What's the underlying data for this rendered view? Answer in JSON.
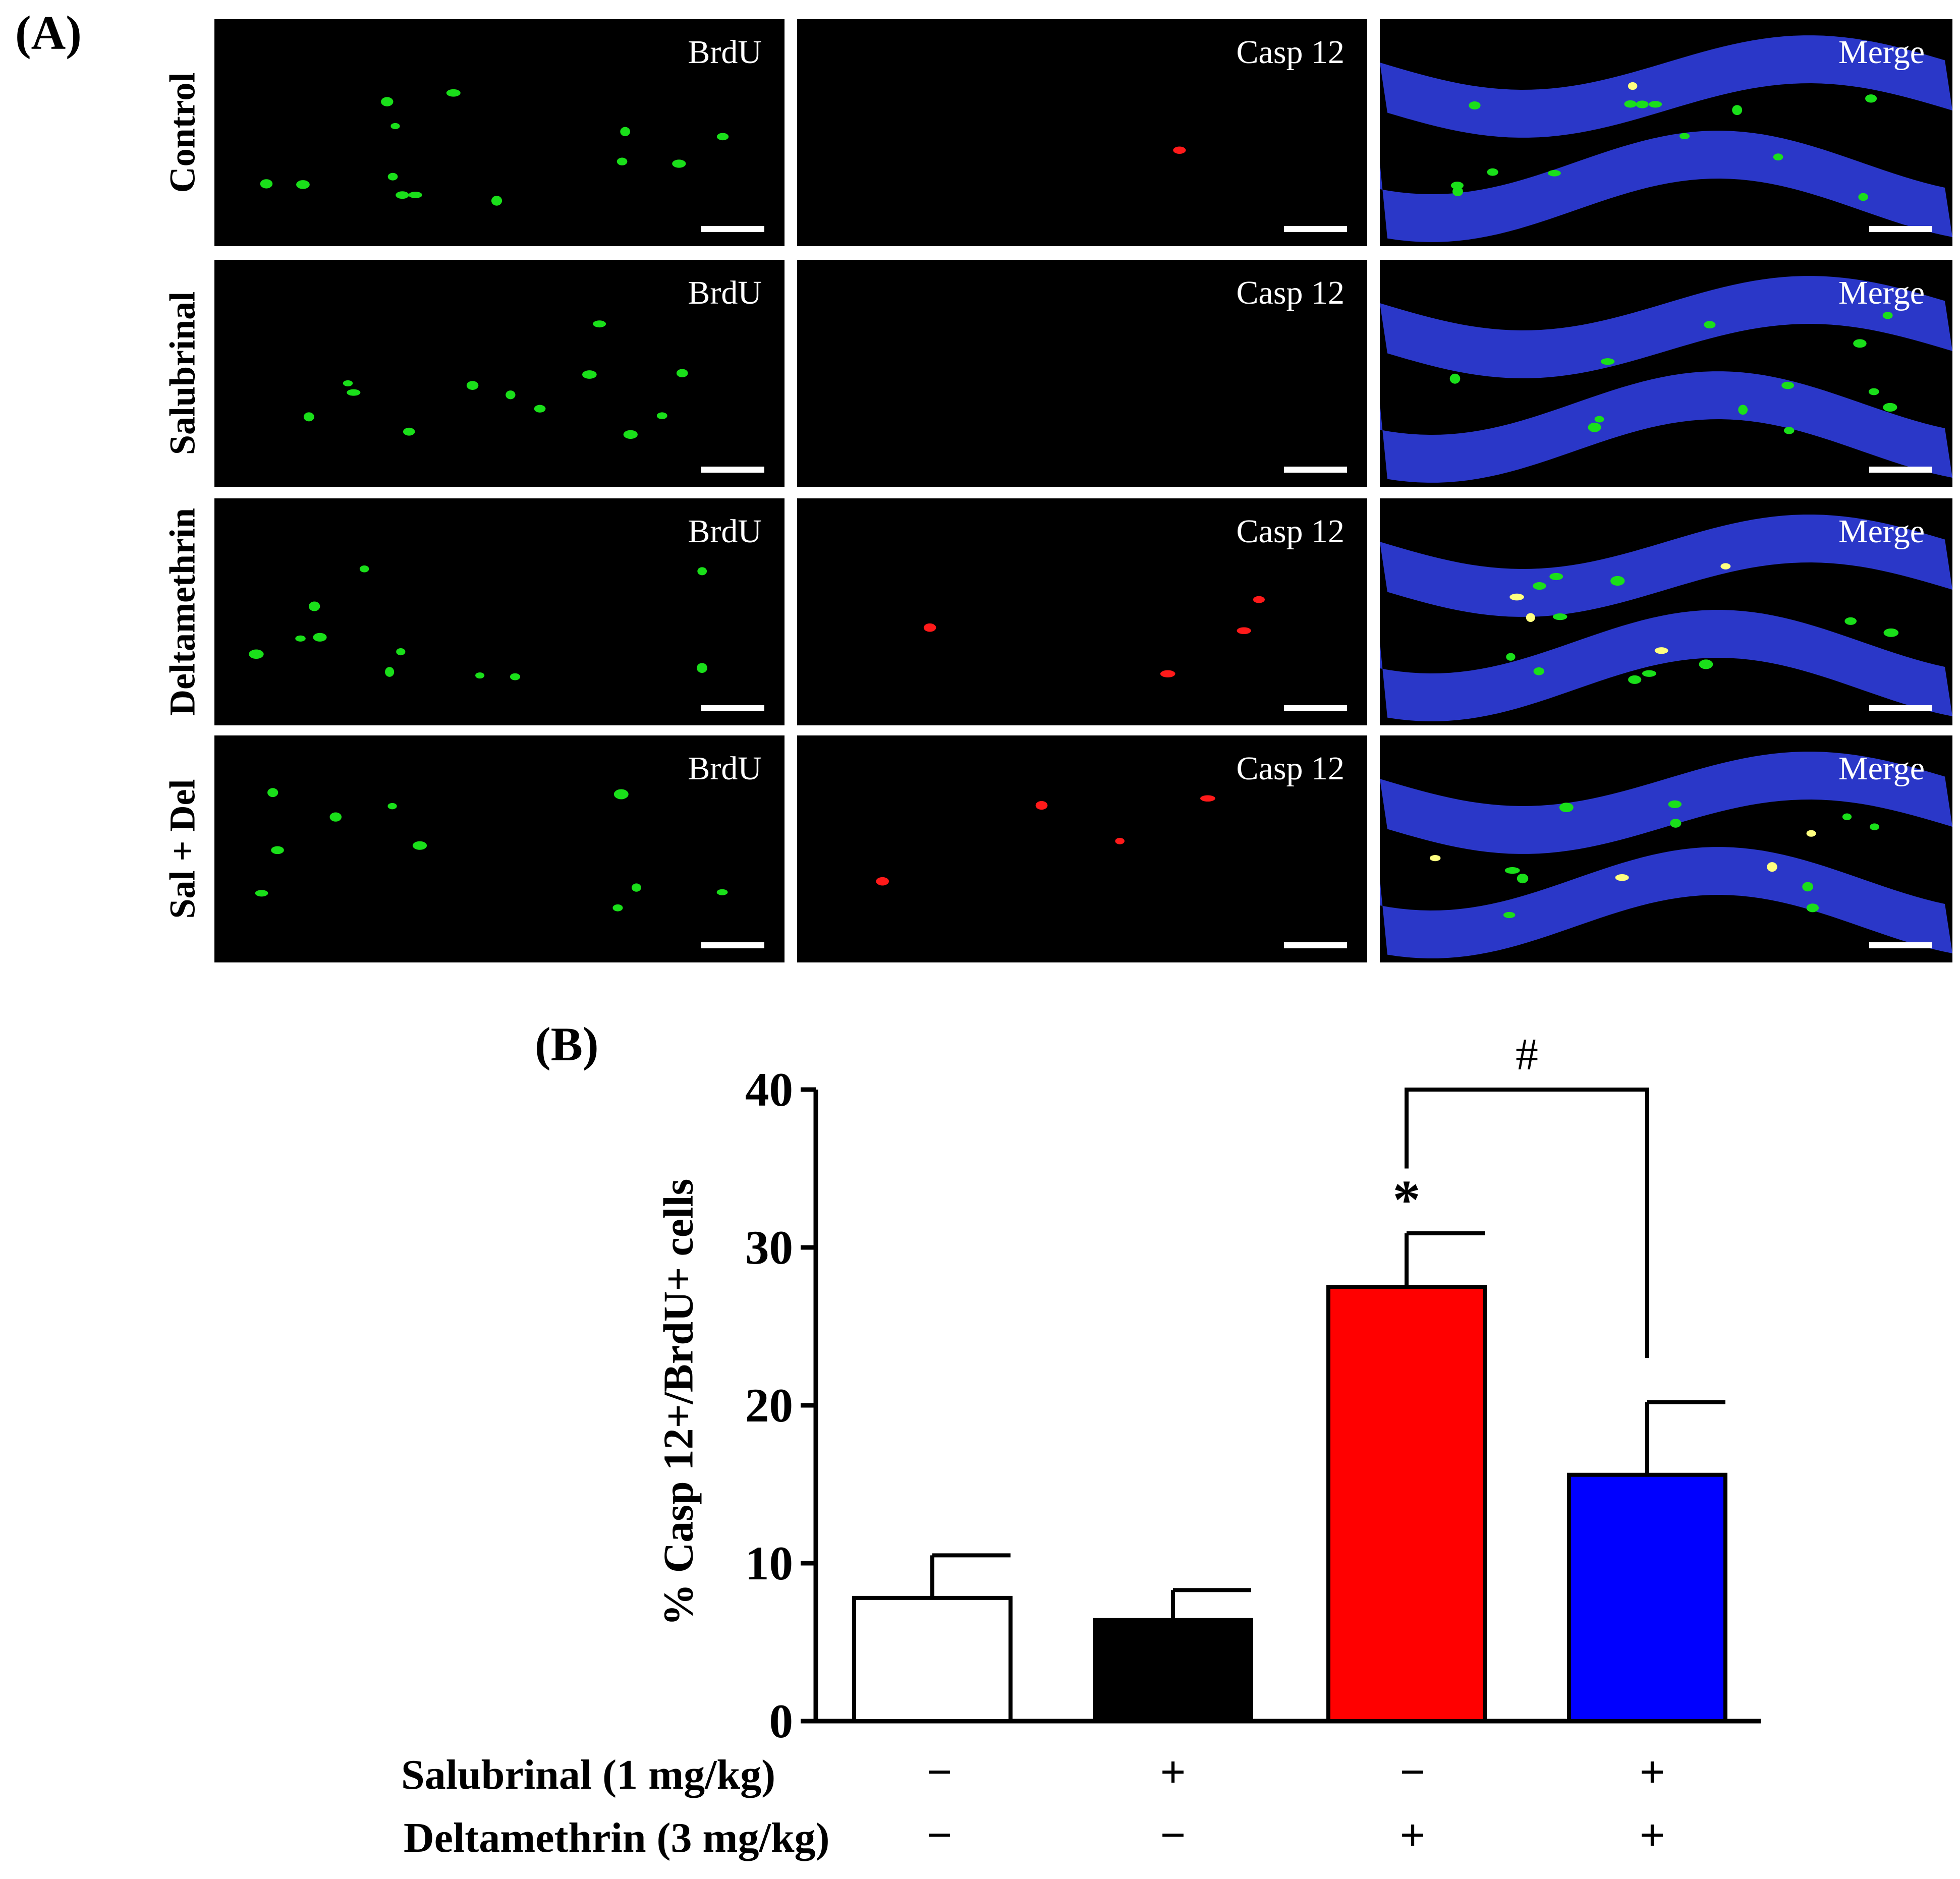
{
  "panel_a": {
    "label": "(A)",
    "rows": [
      {
        "label": "Control"
      },
      {
        "label": "Salubrinal"
      },
      {
        "label": "Deltamethrin"
      },
      {
        "label": "Sal + Del"
      }
    ],
    "channels": [
      "BrdU",
      "Casp 12",
      "Merge"
    ],
    "colors": {
      "brdu": "#1adf1a",
      "casp": "#ff1a1a",
      "dapi": "#2a37c8",
      "merge_overlap": "#ffff80"
    }
  },
  "panel_b": {
    "label": "(B)",
    "significance": {
      "star": "*",
      "hash": "#"
    },
    "conditions": [
      {
        "label": "Salubrinal (1 mg/kg)",
        "signs": [
          "−",
          "+",
          "−",
          "+"
        ]
      },
      {
        "label": "Deltamethrin (3 mg/kg)",
        "signs": [
          "−",
          "−",
          "+",
          "+"
        ]
      }
    ]
  },
  "chart_data": {
    "type": "bar",
    "categories": [
      "Control",
      "Salubrinal",
      "Deltamethrin",
      "Sal + Del"
    ],
    "values": [
      7.8,
      6.4,
      27.5,
      15.6
    ],
    "errors": [
      2.7,
      1.9,
      3.4,
      4.6
    ],
    "bar_colors": [
      "#ffffff",
      "#000000",
      "#ff0000",
      "#0000ff"
    ],
    "ylabel": "% Casp 12+/BrdU+ cells",
    "ylim": [
      0,
      40
    ],
    "yticks": [
      "0",
      "10",
      "20",
      "30",
      "40"
    ]
  }
}
